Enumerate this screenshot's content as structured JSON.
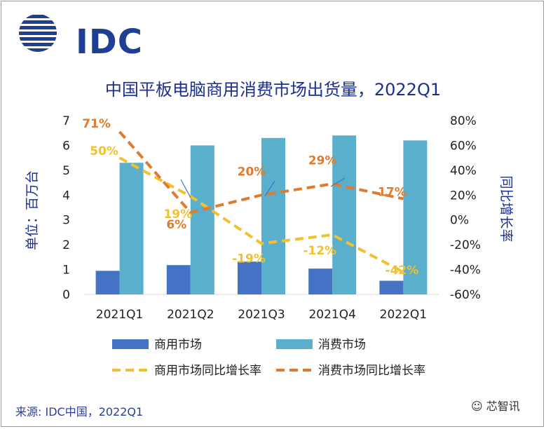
{
  "logo": {
    "text": "IDC"
  },
  "chart_data": {
    "type": "bar",
    "title": "中国平板电脑商用消费市场出货量，2022Q1",
    "ylabel": "单位：百万台",
    "y2label": "同比增长率",
    "categories": [
      "2021Q1",
      "2021Q2",
      "2021Q3",
      "2021Q4",
      "2022Q1"
    ],
    "ylim": [
      0,
      7
    ],
    "yticks": [
      "0",
      "1",
      "2",
      "3",
      "4",
      "5",
      "6",
      "7"
    ],
    "y2lim": [
      -60,
      80
    ],
    "y2ticks": [
      "-60%",
      "-40%",
      "-20%",
      "0%",
      "20%",
      "40%",
      "60%",
      "80%"
    ],
    "series": [
      {
        "name": "商用市场",
        "kind": "bar",
        "axis": "left",
        "color": "#4472c4",
        "values": [
          0.95,
          1.18,
          1.32,
          1.04,
          0.55
        ]
      },
      {
        "name": "消费市场",
        "kind": "bar",
        "axis": "left",
        "color": "#5ab0cc",
        "values": [
          5.3,
          6.0,
          6.3,
          6.4,
          6.2
        ]
      },
      {
        "name": "商用市场同比增长率",
        "kind": "line",
        "axis": "right",
        "color": "#f2c12e",
        "values": [
          50,
          19,
          -19,
          -12,
          -42
        ],
        "labels": [
          "50%",
          "19%",
          "-19%",
          "-12%",
          "-42%"
        ]
      },
      {
        "name": "消费市场同比增长率",
        "kind": "line",
        "axis": "right",
        "color": "#e07b2e",
        "values": [
          71,
          6,
          20,
          29,
          17
        ],
        "labels": [
          "71%",
          "6%",
          "20%",
          "29%",
          "17%"
        ]
      }
    ],
    "grid": false,
    "legend_position": "bottom"
  },
  "source": "来源: IDC中国，2022Q1",
  "watermark": "芯智讯",
  "colors": {
    "title": "#1c2f8e",
    "axis_text": "#1c2f8e",
    "tick_text": "#222222"
  }
}
